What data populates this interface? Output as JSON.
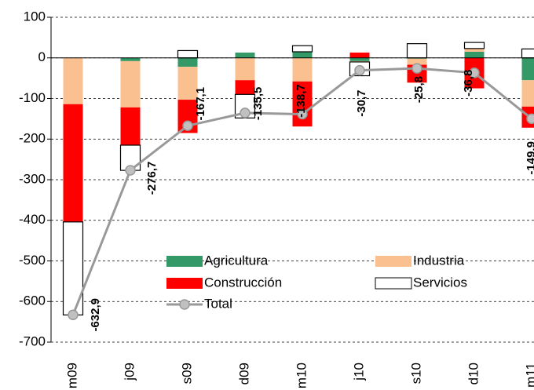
{
  "chart_data": {
    "type": "bar",
    "categories": [
      "m09",
      "j09",
      "s09",
      "d09",
      "m10",
      "j10",
      "s10",
      "d10",
      "m11"
    ],
    "ylim": [
      -700,
      100
    ],
    "yticks": [
      -700,
      -600,
      -500,
      -400,
      -300,
      -200,
      -100,
      0,
      100
    ],
    "grid": true,
    "series": [
      {
        "name": "Agricultura",
        "color": "#339966",
        "values": [
          0,
          -8,
          -22,
          13,
          15,
          -8,
          -2,
          15,
          -55
        ]
      },
      {
        "name": "Industria",
        "color": "#fac090",
        "values": [
          -114,
          -114,
          -81,
          -55,
          -58,
          -2,
          -15,
          8,
          -65
        ]
      },
      {
        "name": "Construcción",
        "color": "#ff0000",
        "values": [
          -290,
          -93,
          -82,
          -35,
          -111,
          13,
          -44,
          -75,
          -52
        ]
      },
      {
        "name": "Servicios",
        "color": "#ffffff",
        "values": [
          -229,
          -62,
          18,
          -58,
          15,
          -34,
          35,
          15,
          22
        ]
      },
      {
        "name": "Total",
        "type": "line",
        "color": "#999999",
        "values": [
          -632.9,
          -276.7,
          -167.1,
          -135.5,
          -138.7,
          -30.7,
          -25.8,
          -36.8,
          -149.9
        ],
        "value_labels": [
          "-632,9",
          "-276,7",
          "-167,1",
          "-135,5",
          "-138,7",
          "-30,7",
          "-25,8",
          "-36,8",
          "-149,9"
        ]
      }
    ]
  }
}
